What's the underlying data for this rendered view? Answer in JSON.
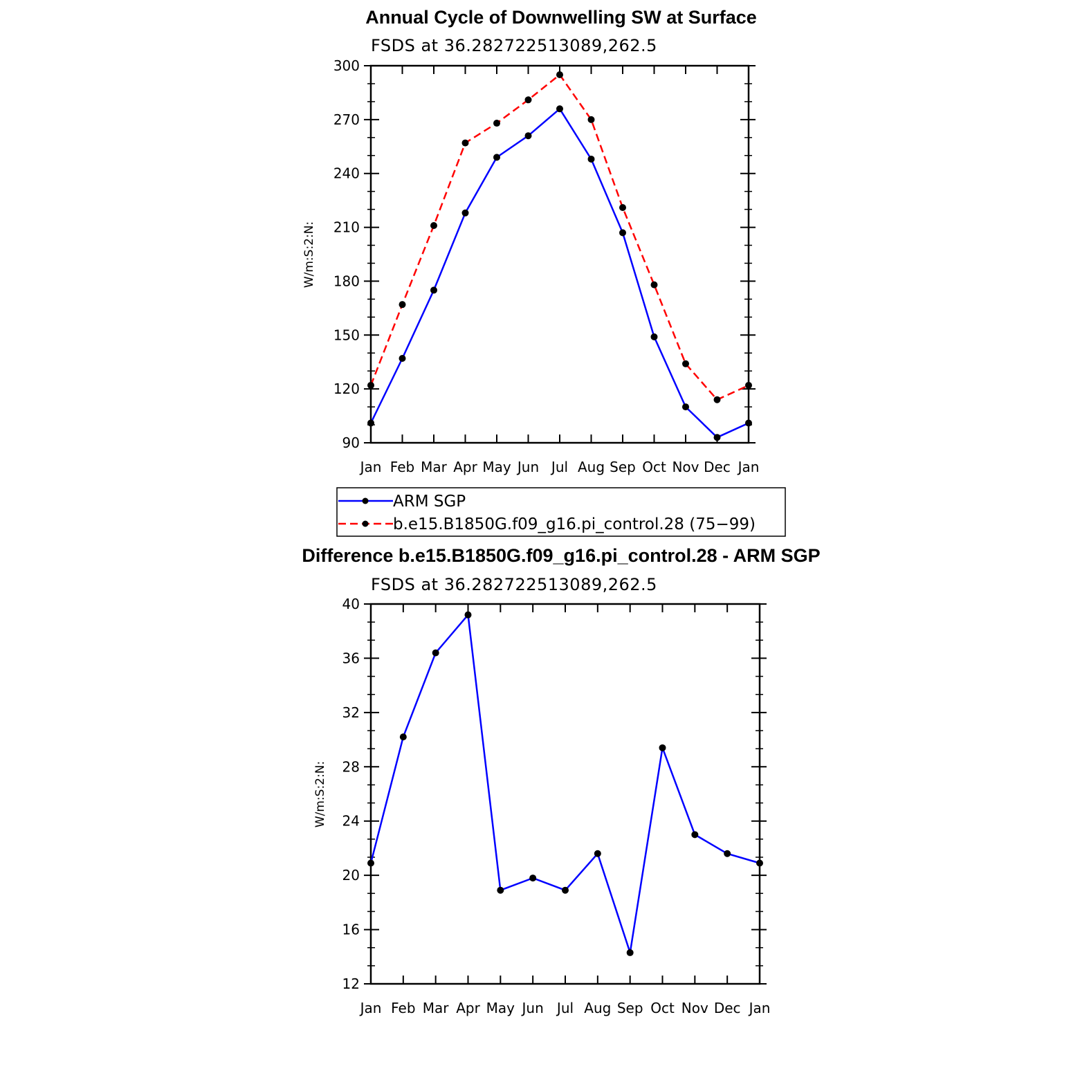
{
  "chart_data": [
    {
      "type": "line",
      "title": "Annual Cycle of Downwelling SW at Surface",
      "subtitle": "FSDS at 36.282722513089,262.5",
      "xlabel": "",
      "ylabel": "W/m:S:2:N:",
      "categories": [
        "Jan",
        "Feb",
        "Mar",
        "Apr",
        "May",
        "Jun",
        "Jul",
        "Aug",
        "Sep",
        "Oct",
        "Nov",
        "Dec",
        "Jan"
      ],
      "ylim": [
        90,
        300
      ],
      "yticks": [
        90,
        120,
        150,
        180,
        210,
        240,
        270,
        300
      ],
      "legend_position": "bottom",
      "series": [
        {
          "name": "ARM SGP",
          "color": "#0000ff",
          "dash": "solid",
          "values": [
            101,
            137,
            175,
            218,
            249,
            261,
            276,
            248,
            207,
            149,
            110,
            93,
            101
          ]
        },
        {
          "name": "b.e15.B1850G.f09_g16.pi_control.28 (75−99)",
          "color": "#ff0000",
          "dash": "dashed",
          "values": [
            122,
            167,
            211,
            257,
            268,
            281,
            295,
            270,
            221,
            178,
            134,
            114,
            122
          ]
        }
      ]
    },
    {
      "type": "line",
      "title": "Difference b.e15.B1850G.f09_g16.pi_control.28 - ARM SGP",
      "subtitle": "FSDS at 36.282722513089,262.5",
      "xlabel": "",
      "ylabel": "W/m:S:2:N:",
      "categories": [
        "Jan",
        "Feb",
        "Mar",
        "Apr",
        "May",
        "Jun",
        "Jul",
        "Aug",
        "Sep",
        "Oct",
        "Nov",
        "Dec",
        "Jan"
      ],
      "ylim": [
        12,
        40
      ],
      "yticks": [
        12,
        16,
        20,
        24,
        28,
        32,
        36,
        40
      ],
      "series": [
        {
          "color": "#0000ff",
          "dash": "solid",
          "values": [
            20.9,
            30.2,
            36.4,
            39.2,
            18.9,
            19.8,
            18.9,
            21.6,
            14.3,
            29.4,
            23.0,
            21.6,
            20.9
          ]
        }
      ]
    }
  ]
}
